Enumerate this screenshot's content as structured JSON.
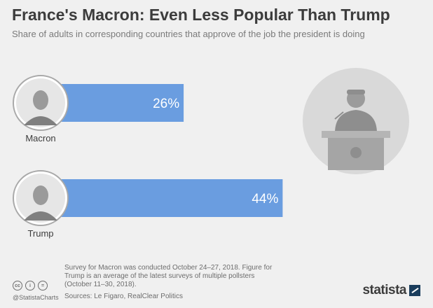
{
  "title": "France's Macron: Even Less Popular Than Trump",
  "subtitle": "Share of adults in corresponding countries that approve of the job the president is doing",
  "chart_data": {
    "type": "bar",
    "orientation": "horizontal",
    "categories": [
      "Macron",
      "Trump"
    ],
    "values": [
      26,
      44
    ],
    "value_labels": [
      "26%",
      "44%"
    ],
    "unit": "%",
    "xlim": [
      0,
      50
    ],
    "bar_color": "#6a9de0",
    "grid": false
  },
  "footer": {
    "note": "Survey for Macron was conducted October 24–27, 2018. Figure for Trump is an average of the latest surveys of multiple pollsters (October 11–30, 2018).",
    "sources": "Sources: Le Figaro, RealClear Politics",
    "handle": "@StatistaCharts",
    "license_icons": [
      "cc",
      "i",
      "="
    ],
    "logo": "statista"
  }
}
